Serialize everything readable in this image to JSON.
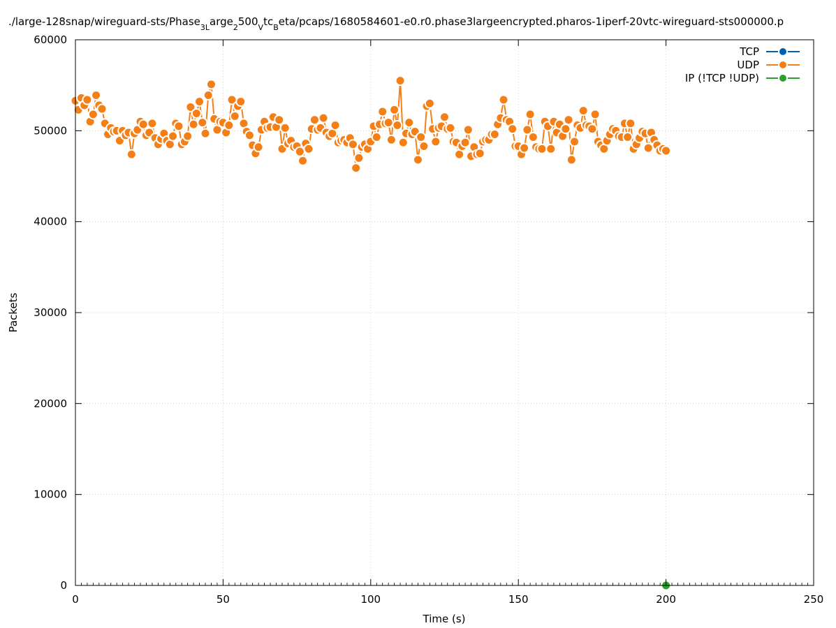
{
  "chart_data": {
    "type": "line",
    "title_parts": [
      {
        "t": "./large-128snap/wireguard-sts/Phase"
      },
      {
        "t": "3L",
        "sub": true
      },
      {
        "t": "arge"
      },
      {
        "t": "2",
        "sub": true
      },
      {
        "t": "500"
      },
      {
        "t": "V",
        "sub": true
      },
      {
        "t": "tc"
      },
      {
        "t": "B",
        "sub": true
      },
      {
        "t": "eta/pcaps/1680584601-e0.r0.phase3largeencrypted.pharos-1iperf-20vtc-wireguard-sts000000.p"
      }
    ],
    "xlabel": "Time (s)",
    "ylabel": "Packets",
    "xlim": [
      0,
      250
    ],
    "ylim": [
      0,
      60000
    ],
    "xticks": [
      0,
      50,
      100,
      150,
      200,
      250
    ],
    "yticks": [
      0,
      10000,
      20000,
      30000,
      40000,
      50000,
      60000
    ],
    "grid": true,
    "legend_position": "top-right",
    "series": [
      {
        "name": "TCP",
        "color": "#0060ad",
        "x": [],
        "y": []
      },
      {
        "name": "UDP",
        "color": "#f57f17",
        "x": [
          0,
          1,
          2,
          3,
          4,
          5,
          6,
          7,
          8,
          9,
          10,
          11,
          12,
          13,
          14,
          15,
          16,
          17,
          18,
          19,
          20,
          21,
          22,
          23,
          24,
          25,
          26,
          27,
          28,
          29,
          30,
          31,
          32,
          33,
          34,
          35,
          36,
          37,
          38,
          39,
          40,
          41,
          42,
          43,
          44,
          45,
          46,
          47,
          48,
          49,
          50,
          51,
          52,
          53,
          54,
          55,
          56,
          57,
          58,
          59,
          60,
          61,
          62,
          63,
          64,
          65,
          66,
          67,
          68,
          69,
          70,
          71,
          72,
          73,
          74,
          75,
          76,
          77,
          78,
          79,
          80,
          81,
          82,
          83,
          84,
          85,
          86,
          87,
          88,
          89,
          90,
          91,
          92,
          93,
          94,
          95,
          96,
          97,
          98,
          99,
          100,
          101,
          102,
          103,
          104,
          105,
          106,
          107,
          108,
          109,
          110,
          111,
          112,
          113,
          114,
          115,
          116,
          117,
          118,
          119,
          120,
          121,
          122,
          123,
          124,
          125,
          126,
          127,
          128,
          129,
          130,
          131,
          132,
          133,
          134,
          135,
          136,
          137,
          138,
          139,
          140,
          141,
          142,
          143,
          144,
          145,
          146,
          147,
          148,
          149,
          150,
          151,
          152,
          153,
          154,
          155,
          156,
          157,
          158,
          159,
          160,
          161,
          162,
          163,
          164,
          165,
          166,
          167,
          168,
          169,
          170,
          171,
          172,
          173,
          174,
          175,
          176,
          177,
          178,
          179,
          180,
          181,
          182,
          183,
          184,
          185,
          186,
          187,
          188,
          189,
          190,
          191,
          192,
          193,
          194,
          195,
          196,
          197,
          198,
          199,
          200
        ],
        "y": [
          53300,
          52300,
          53600,
          52800,
          53400,
          51000,
          51800,
          53900,
          52800,
          52400,
          50800,
          49600,
          50300,
          49900,
          50000,
          48900,
          50000,
          49500,
          49800,
          47400,
          49700,
          50100,
          51000,
          50700,
          49500,
          49800,
          50800,
          49200,
          48500,
          49100,
          49700,
          48900,
          48500,
          49400,
          50800,
          50500,
          48500,
          48800,
          49400,
          52600,
          50700,
          51900,
          53200,
          50900,
          49700,
          53900,
          55100,
          51300,
          50100,
          51000,
          50900,
          49800,
          50600,
          53400,
          51600,
          52700,
          53200,
          50800,
          49900,
          49500,
          48400,
          47500,
          48200,
          50100,
          51000,
          50300,
          50400,
          51500,
          50400,
          51200,
          48000,
          50300,
          48600,
          48900,
          48200,
          48300,
          47700,
          46700,
          48600,
          48000,
          50200,
          51200,
          50100,
          50300,
          51400,
          49800,
          49400,
          49700,
          50600,
          48700,
          48900,
          49000,
          48700,
          49200,
          48500,
          45900,
          47000,
          48200,
          48500,
          48000,
          48800,
          50500,
          49300,
          50700,
          52100,
          50800,
          50900,
          49000,
          52300,
          50600,
          55500,
          48700,
          49700,
          50900,
          49600,
          49900,
          46800,
          49300,
          48300,
          52700,
          53000,
          50200,
          48800,
          50300,
          50500,
          51500,
          50200,
          50300,
          48800,
          48700,
          47400,
          48300,
          48700,
          50100,
          47200,
          48200,
          47400,
          47500,
          48800,
          49000,
          49000,
          49600,
          49600,
          50700,
          51400,
          53400,
          51200,
          51000,
          50200,
          48300,
          48300,
          47400,
          48100,
          50100,
          51800,
          49300,
          48200,
          48000,
          48000,
          51000,
          50500,
          48000,
          51000,
          49800,
          50700,
          49400,
          50200,
          51200,
          46800,
          48800,
          50600,
          50300,
          52200,
          50600,
          50500,
          50200,
          51800,
          48800,
          48400,
          48000,
          48900,
          49600,
          50200,
          50000,
          49400,
          49300,
          50800,
          49300,
          50800,
          48000,
          48500,
          49200,
          49900,
          49700,
          48100,
          49800,
          49000,
          48400,
          47800,
          48000,
          47800
        ]
      },
      {
        "name": "IP (!TCP  !UDP)",
        "color": "#2ca02c",
        "x": [
          200
        ],
        "y": [
          0
        ]
      }
    ]
  }
}
